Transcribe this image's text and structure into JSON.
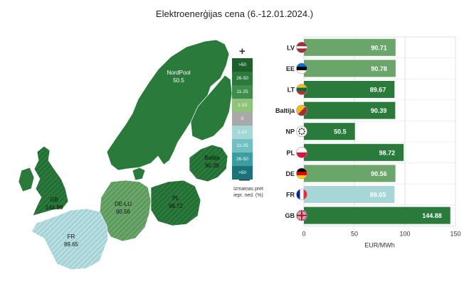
{
  "title": "Elektroenerģijas cena (6.-12.01.2024.)",
  "colors": {
    "increase_strong": "#2a7a3c",
    "increase_light": "#6aa56a",
    "decrease_light": "#a7d6d7",
    "gray": "#a9a9a9"
  },
  "legend": {
    "plus": "+",
    "minus": "—",
    "items": [
      {
        "label": ">50",
        "color": "#1e5f2d"
      },
      {
        "label": "26-50",
        "color": "#2a7a3c"
      },
      {
        "label": "11-25",
        "color": "#3f8c4c"
      },
      {
        "label": "1-10",
        "color": "#8fc27a"
      },
      {
        "label": "0",
        "color": "#a9a9a9"
      },
      {
        "label": "1-10",
        "color": "#a7d6d7"
      },
      {
        "label": "11-25",
        "color": "#72bfc2"
      },
      {
        "label": "26-50",
        "color": "#3a9ea3"
      },
      {
        "label": ">50",
        "color": "#1d7278"
      }
    ],
    "caption_line1": "Izmaiņas pret",
    "caption_line2": "iepr. ned. (%)"
  },
  "map_labels": [
    {
      "name": "NordPool",
      "value": "50.5"
    },
    {
      "name": "Baltija",
      "value": "90.39"
    },
    {
      "name": "GB",
      "value": "144.88"
    },
    {
      "name": "DE-LU",
      "value": "90.56"
    },
    {
      "name": "PL",
      "value": "98.72"
    },
    {
      "name": "FR",
      "value": "89.65"
    }
  ],
  "chart_data": {
    "type": "bar",
    "orientation": "horizontal",
    "categories": [
      "LV",
      "EE",
      "LT",
      "Baltija",
      "NP",
      "PL",
      "DE",
      "FR",
      "GB"
    ],
    "values": [
      90.71,
      90.78,
      89.67,
      90.39,
      50.5,
      98.72,
      90.56,
      89.65,
      144.88
    ],
    "bar_colors": [
      "#6aa56a",
      "#6aa56a",
      "#2a7a3c",
      "#2a7a3c",
      "#2a7a3c",
      "#2a7a3c",
      "#6aa56a",
      "#a7d6d7",
      "#2a7a3c"
    ],
    "value_labels": [
      "90.71",
      "90.78",
      "89.67",
      "90.39",
      "50.5",
      "98.72",
      "90.56",
      "89.65",
      "144.88"
    ],
    "xlabel": "EUR/MWh",
    "xlim": [
      0,
      150
    ],
    "xticks": [
      0,
      50,
      100,
      150
    ],
    "grid": true
  }
}
